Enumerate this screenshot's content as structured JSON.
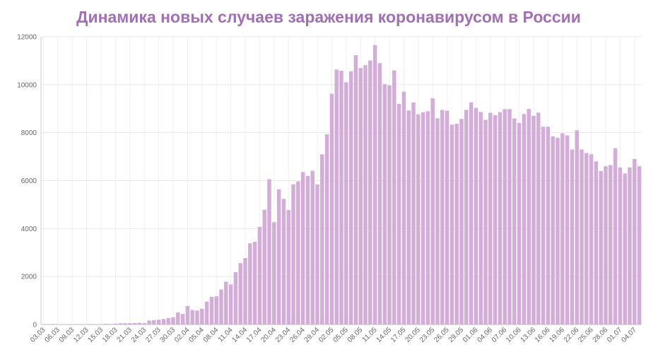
{
  "chart_data": {
    "type": "bar",
    "title": "Динамика новых случаев заражения коронавирусом в России",
    "color": "#d4acd9",
    "grid": true,
    "ylim": [
      0,
      12000
    ],
    "yticks": [
      0,
      2000,
      4000,
      6000,
      8000,
      10000,
      12000
    ],
    "categories": [
      "03.03",
      null,
      null,
      "06.03",
      null,
      null,
      "09.03",
      null,
      null,
      "12.03",
      null,
      null,
      "15.03",
      null,
      null,
      "18.03",
      null,
      null,
      "21.03",
      null,
      null,
      "24.03",
      null,
      null,
      "27.03",
      null,
      null,
      "30.03",
      null,
      null,
      "02.04",
      null,
      null,
      "05.04",
      null,
      null,
      "08.04",
      null,
      null,
      "11.04",
      null,
      null,
      "14.04",
      null,
      null,
      "17.04",
      null,
      null,
      "20.04",
      null,
      null,
      "23.04",
      null,
      null,
      "26.04",
      null,
      null,
      "29.04",
      null,
      null,
      "02.05",
      null,
      null,
      "05.05",
      null,
      null,
      "08.05",
      null,
      null,
      "11.05",
      null,
      null,
      "14.05",
      null,
      null,
      "17.05",
      null,
      null,
      "20.05",
      null,
      null,
      "23.05",
      null,
      null,
      "26.05",
      null,
      null,
      "29.05",
      null,
      null,
      "01.06",
      null,
      null,
      "04.06",
      null,
      null,
      "07.06",
      null,
      null,
      "10.06",
      null,
      null,
      "13.06",
      null,
      null,
      "16.06",
      null,
      null,
      "19.06",
      null,
      null,
      "22.06",
      null,
      null,
      "25.06",
      null,
      null,
      "28.06",
      null,
      null,
      "01.07",
      null,
      null,
      "04.07",
      null
    ],
    "values": [
      0,
      0,
      1,
      1,
      10,
      0,
      3,
      3,
      0,
      8,
      17,
      14,
      4,
      30,
      21,
      33,
      52,
      54,
      53,
      61,
      71,
      57,
      163,
      182,
      196,
      228,
      270,
      302,
      500,
      440,
      771,
      601,
      582,
      658,
      954,
      1154,
      1175,
      1459,
      1786,
      1667,
      2186,
      2558,
      2774,
      3388,
      3448,
      4070,
      4785,
      6060,
      4268,
      5642,
      5236,
      4774,
      5849,
      5966,
      6361,
      6198,
      6411,
      5841,
      7099,
      7933,
      9623,
      10633,
      10581,
      10102,
      10559,
      11231,
      10699,
      10817,
      11012,
      11656,
      10899,
      10028,
      9974,
      10598,
      9200,
      9709,
      8926,
      9263,
      8764,
      8849,
      8894,
      9434,
      8599,
      8946,
      8915,
      8338,
      8371,
      8572,
      8952,
      9268,
      9035,
      8863,
      8536,
      8831,
      8726,
      8855,
      8984,
      8985,
      8595,
      8404,
      8779,
      8987,
      8706,
      8835,
      8246,
      8248,
      7843,
      7790,
      7972,
      7889,
      7300,
      8100,
      7300,
      7150,
      7100,
      6800,
      6400,
      6600,
      6650,
      7350,
      6550,
      6300,
      6550,
      6900,
      6600
    ]
  }
}
